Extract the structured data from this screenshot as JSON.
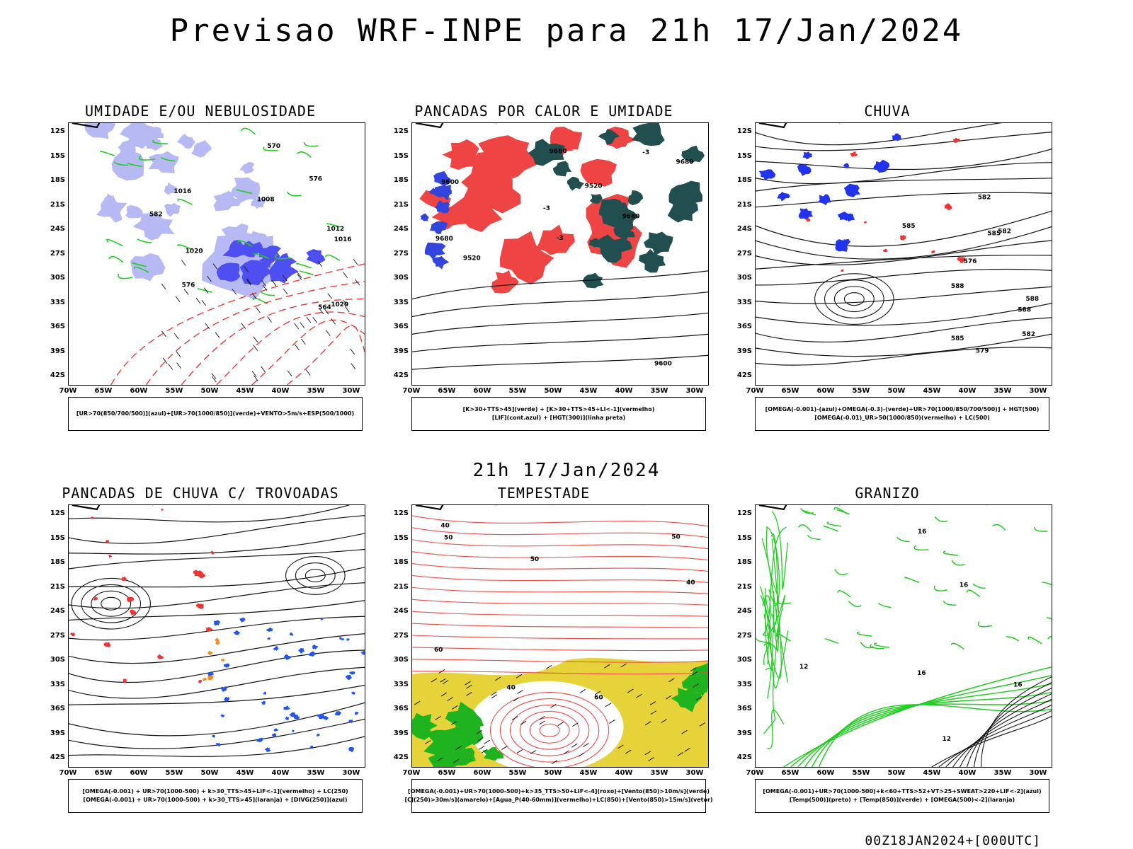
{
  "main_title": "Previsao WRF-INPE  para 21h 17/Jan/2024",
  "mid_date": "21h 17/Jan/2024",
  "footer": "00Z18JAN2024+[000UTC]",
  "lat_labels": [
    "12S",
    "15S",
    "18S",
    "21S",
    "24S",
    "27S",
    "30S",
    "33S",
    "36S",
    "39S",
    "42S"
  ],
  "lon_labels": [
    "70W",
    "65W",
    "60W",
    "55W",
    "50W",
    "45W",
    "40W",
    "35W",
    "30W"
  ],
  "panels": [
    {
      "title": "UMIDADE E/OU NEBULOSIDADE",
      "legend": [
        "[UR>70(850/700/500)](azul)+[UR>70(1000/850)](verde)+VENTO>5m/s+ESP(500/1000)"
      ],
      "labels": [
        "1016",
        "1012",
        "1008",
        "1016",
        "1020",
        "1020",
        "576",
        "570",
        "564",
        "576",
        "582"
      ]
    },
    {
      "title": "PANCADAS POR CALOR E UMIDADE",
      "legend": [
        "[K>30+TTS>45](verde) + [K>30+TTS>45+LI<-1](vermelho)",
        "[LIF](cont.azul) + [HGT(300)](linha preta)"
      ],
      "labels": [
        "9680",
        "9680",
        "9680",
        "9680",
        "9600",
        "9600",
        "9520",
        "9520",
        "-3",
        "-3",
        "-3"
      ]
    },
    {
      "title": "CHUVA",
      "legend": [
        "[OMEGA(-0.001)-(azul)+OMEGA(-0.3)-(verde)+UR>70(1000/850/700/500)] + HGT(500)",
        "[OMEGA(-0.01)_UR>50(1000/850)(vermelho) + LC(500)"
      ],
      "labels": [
        "588",
        "588",
        "585",
        "588",
        "585",
        "582",
        "582",
        "585",
        "582",
        "579",
        "576"
      ]
    },
    {
      "title": "PANCADAS DE CHUVA C/ TROVOADAS",
      "legend": [
        "[OMEGA(-0.001) + UR>70(1000-500) + k>30_TTS>45+LIF<-1](vermelho) + LC(250)",
        "[OMEGA(-0.001) + UR>70(1000-500) + k>30_TTS>45](laranja) + [DIVG(250)](azul)"
      ],
      "labels": []
    },
    {
      "title": "TEMPESTADE",
      "legend": [
        "[OMEGA(-0.001)+UR>70(1000-500)+k>35_TTS>50+LIF<-4](roxo)+[Vento(850)>10m/s](verde)",
        "[CJ(250)>30m/s](amarelo)+[Agua_P(40-60mm)](vermelho)+LC(850)+[Vento(850)>15m/s](vetor)"
      ],
      "labels": [
        "50",
        "40",
        "60",
        "50",
        "40",
        "60",
        "50",
        "40"
      ]
    },
    {
      "title": "GRANIZO",
      "legend": [
        "[OMEGA(-0.001)+UR>70(1000-500)+k<60+TTS>52+VT>25+SWEAT>220+LIF<-2](azul)",
        "[Temp(500)](preto) + [Temp(850)](verde) + [OMEGA(500)<-2](laranja)"
      ],
      "labels": [
        "16",
        "16",
        "12",
        "16",
        "12",
        "16"
      ]
    }
  ]
}
